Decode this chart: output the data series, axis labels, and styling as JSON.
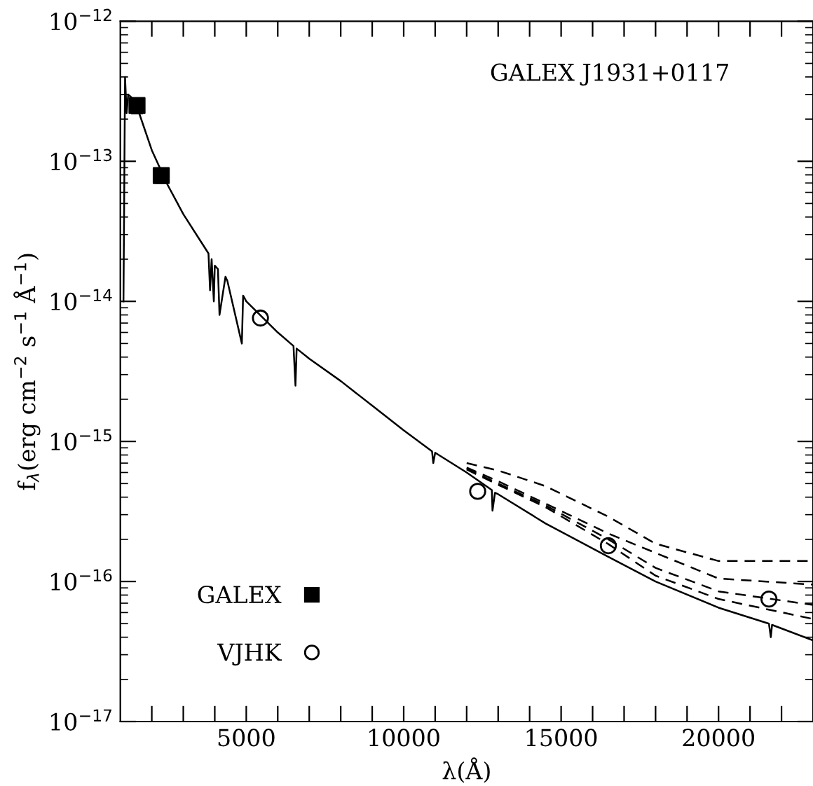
{
  "chart_data": {
    "type": "line",
    "annotations": [
      "GALEX J1931+0117"
    ],
    "xlabel": "λ(Å)",
    "ylabel": "f$_{λ}$(erg cm$^{−2}$ s$^{−1}$ Å$^{−1}$)",
    "log": "y",
    "legend": "bottom left",
    "grid": false,
    "xlim": [
      1000,
      23000
    ],
    "xticks": [
      {
        "value": 2000,
        "label": null
      },
      {
        "value": 3000,
        "label": null
      },
      {
        "value": 4000,
        "label": null
      },
      5000,
      {
        "value": 6000,
        "label": null
      },
      {
        "value": 7000,
        "label": null
      },
      {
        "value": 8000,
        "label": null
      },
      {
        "value": 9000,
        "label": null
      },
      10000,
      {
        "value": 11000,
        "label": null
      },
      {
        "value": 12000,
        "label": null
      },
      {
        "value": 13000,
        "label": null
      },
      {
        "value": 14000,
        "label": null
      },
      15000,
      {
        "value": 16000,
        "label": null
      },
      {
        "value": 17000,
        "label": null
      },
      {
        "value": 18000,
        "label": null
      },
      {
        "value": 19000,
        "label": null
      },
      20000,
      {
        "value": 21000,
        "label": null
      },
      {
        "value": 22000,
        "label": null
      }
    ],
    "ylim": [
      1e-17,
      1e-12
    ],
    "yticks": [
      {
        "value": 1e-17,
        "label": "10$^{−17}$"
      },
      {
        "value": 1e-16,
        "label": "10$^{−16}$"
      },
      {
        "value": 1e-15,
        "label": "10$^{−15}$"
      },
      {
        "value": 1e-14,
        "label": "10$^{−14}$"
      },
      {
        "value": 1e-13,
        "label": "10$^{−13}$"
      },
      {
        "value": 1e-12,
        "label": "10$^{−12}$"
      }
    ],
    "series": [
      {
        "line_style": "solid",
        "color": "#000000",
        "x": [
          1100,
          1150,
          1200,
          1250,
          1400,
          1600,
          2000,
          2500,
          3000,
          3500,
          3800,
          3850,
          3900,
          3970,
          4000,
          4100,
          4150,
          4340,
          4400,
          4860,
          4900,
          5000,
          6000,
          6500,
          6563,
          6600,
          7000,
          8000,
          9000,
          10000,
          10900,
          10940,
          11000,
          12000,
          12800,
          12820,
          12900,
          13000,
          14500,
          16500,
          18000,
          20000,
          21600,
          21660,
          21700,
          23000
        ],
        "values": [
          1e-14,
          4e-13,
          2.2e-13,
          3e-13,
          2.8e-13,
          2.2e-13,
          1.2e-13,
          6.8e-14,
          4.2e-14,
          2.8e-14,
          2.2e-14,
          1.2e-14,
          2e-14,
          1e-14,
          1.8e-14,
          1.7e-14,
          8e-15,
          1.5e-14,
          1.4e-14,
          5e-15,
          1.1e-14,
          1e-14,
          6e-15,
          4.8e-15,
          2.5e-15,
          4.6e-15,
          3.9e-15,
          2.7e-15,
          1.8e-15,
          1.2e-15,
          8.5e-16,
          7e-16,
          8.3e-16,
          6e-16,
          4.5e-16,
          3.2e-16,
          4.3e-16,
          4.2e-16,
          2.6e-16,
          1.5e-16,
          1e-16,
          6.5e-17,
          5e-17,
          4e-17,
          4.9e-17,
          3.8e-17
        ]
      },
      {
        "line_style": "dashed",
        "color": "#000000",
        "x": [
          12000,
          13000,
          14500,
          16500,
          18000,
          20000,
          23000
        ],
        "values": [
          7e-16,
          6.2e-16,
          4.8e-16,
          2.9e-16,
          1.86e-16,
          1.4e-16,
          1.4e-16
        ]
      },
      {
        "line_style": "dashed",
        "color": "#000000",
        "x": [
          12000,
          13000,
          14500,
          16500,
          18000,
          20000,
          23000
        ],
        "values": [
          6.5e-16,
          5.2e-16,
          3.6e-16,
          2.2e-16,
          1.6e-16,
          1.05e-16,
          9.5e-17
        ]
      },
      {
        "line_style": "dashed",
        "color": "#000000",
        "x": [
          12000,
          13000,
          14500,
          16500,
          18000,
          20000,
          23000
        ],
        "values": [
          6.4e-16,
          5e-16,
          3.5e-16,
          2e-16,
          1.25e-16,
          8.5e-17,
          6.8e-17
        ]
      },
      {
        "line_style": "dashed",
        "color": "#000000",
        "x": [
          12000,
          13000,
          14500,
          16500,
          18000,
          20000,
          23000
        ],
        "values": [
          6.3e-16,
          4.9e-16,
          3.4e-16,
          1.85e-16,
          1.1e-16,
          7.5e-17,
          5.4e-17
        ]
      },
      {
        "type": "scatter",
        "name": "GALEX",
        "marker": "square",
        "color": "#000000",
        "x": [
          1530,
          2300
        ],
        "values": [
          2.5e-13,
          7.9e-14
        ],
        "errors": [
          [
            2.2e-13,
            2.8e-13
          ],
          [
            7e-14,
            8.8e-14
          ]
        ]
      },
      {
        "type": "scatter",
        "name": "VJHK",
        "marker": "circle",
        "color": "#000000",
        "x": [
          5450,
          12350,
          16500,
          21600
        ],
        "values": [
          7.6e-15,
          4.4e-16,
          1.8e-16,
          7.5e-17
        ]
      }
    ]
  }
}
